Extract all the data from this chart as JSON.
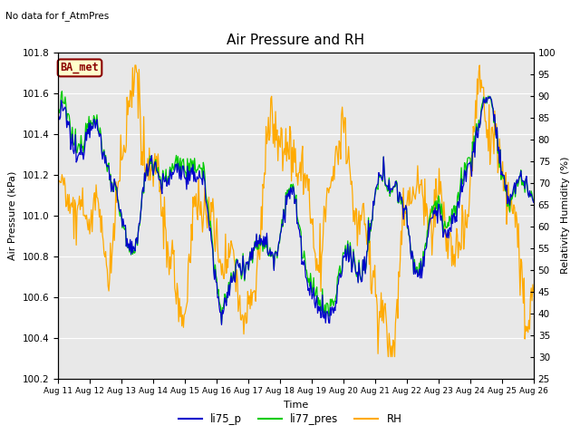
{
  "title": "Air Pressure and RH",
  "top_left_text": "No data for f_AtmPres",
  "box_label": "BA_met",
  "ylabel_left": "Air Pressure (kPa)",
  "ylabel_right": "Relativity Humidity (%)",
  "xlabel": "Time",
  "ylim_left": [
    100.2,
    101.8
  ],
  "ylim_right": [
    25,
    100
  ],
  "yticks_left": [
    100.2,
    100.4,
    100.6,
    100.8,
    101.0,
    101.2,
    101.4,
    101.6,
    101.8
  ],
  "yticks_right": [
    25,
    30,
    35,
    40,
    45,
    50,
    55,
    60,
    65,
    70,
    75,
    80,
    85,
    90,
    95,
    100
  ],
  "x_tick_labels": [
    "Aug 11",
    "Aug 12",
    "Aug 13",
    "Aug 14",
    "Aug 15",
    "Aug 16",
    "Aug 17",
    "Aug 18",
    "Aug 19",
    "Aug 20",
    "Aug 21",
    "Aug 22",
    "Aug 23",
    "Aug 24",
    "Aug 25",
    "Aug 26"
  ],
  "color_li75": "#0000cc",
  "color_li77": "#00cc00",
  "color_rh": "#ffaa00",
  "background_color": "#e8e8e8",
  "legend_labels": [
    "li75_p",
    "li77_pres",
    "RH"
  ],
  "n_points": 600
}
